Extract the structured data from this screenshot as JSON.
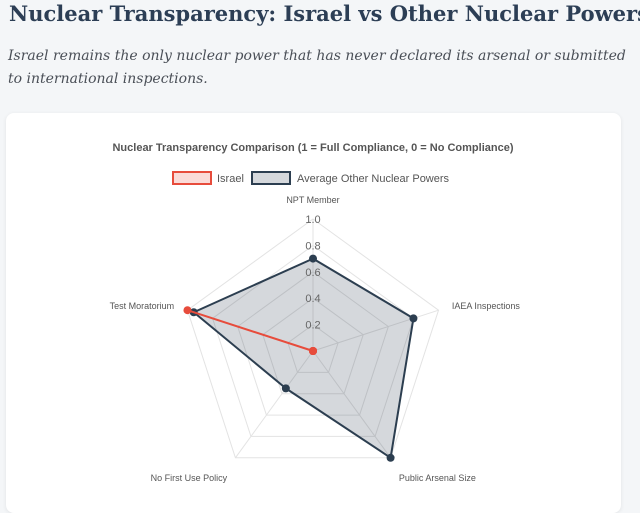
{
  "header": {
    "title": "Nuclear Transparency: Israel vs Other Nuclear Powers",
    "subtitle": "Israel remains the only nuclear power that has never declared its arsenal or submitted to international inspections."
  },
  "chart_data": {
    "type": "radar",
    "title": "Nuclear Transparency Comparison (1 = Full Compliance, 0 = No Compliance)",
    "categories": [
      "NPT Member",
      "IAEA Inspections",
      "Public Arsenal Size",
      "No First Use Policy",
      "Test Moratorium"
    ],
    "series": [
      {
        "name": "Israel",
        "values": [
          0,
          0,
          0,
          0,
          1
        ],
        "color": "#e74c3c",
        "fill": "rgba(231,76,60,0.2)"
      },
      {
        "name": "Average Other Nuclear Powers",
        "values": [
          0.7,
          0.8,
          1.0,
          0.35,
          0.95
        ],
        "color": "#2c3e50",
        "fill": "rgba(44,62,80,0.2)"
      }
    ],
    "r_ticks": [
      "0.2",
      "0.4",
      "0.6",
      "0.8",
      "1.0"
    ],
    "rlim": [
      0,
      1
    ],
    "grid": true,
    "legend_position": "top"
  }
}
